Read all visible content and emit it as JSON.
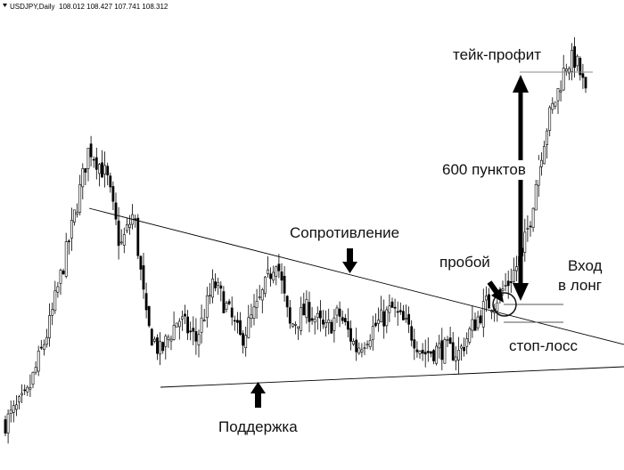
{
  "header": {
    "symbol_label": "USDJPY,Daily",
    "ohlc_label": "108.012 108.427 107.741 108.312"
  },
  "colors": {
    "candle": "#000000",
    "background": "#ffffff",
    "trendline": "#000000",
    "level": "#666666",
    "arrow": "#000000"
  },
  "chart_data": {
    "type": "candlestick",
    "symbol": "USDJPY",
    "timeframe": "Daily",
    "pattern": "descending triangle breakout",
    "annotations": {
      "resistance": "Сопротивление",
      "support": "Поддержка",
      "breakout": "пробой",
      "entry_line1": "Вход",
      "entry_line2": "в лонг",
      "stop_loss": "стоп-лосс",
      "take_profit": "тейк-профит",
      "target_distance": "600 пунктов"
    },
    "shape": {
      "note": "close path in relative price units (0 = chart bottom, 100 = chart top)",
      "start": 8,
      "rise_peak": 71,
      "range_low": 22,
      "range_high": 46,
      "breakout_level": 36,
      "take_profit_level": 85,
      "final_high": 93,
      "last_close": 80
    },
    "grid": false,
    "legend": "none"
  }
}
